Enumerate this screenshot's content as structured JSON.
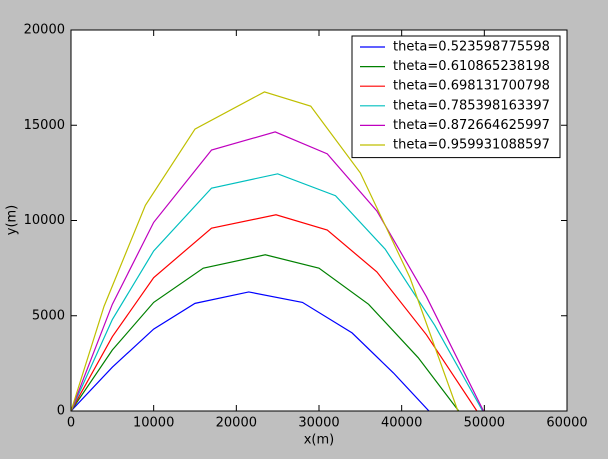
{
  "chart_data": {
    "type": "line",
    "x_label": "x(m)",
    "y_label": "y(m)",
    "xlim": [
      0,
      60000
    ],
    "ylim": [
      0,
      20000
    ],
    "xticks": [
      0,
      10000,
      20000,
      30000,
      40000,
      50000,
      60000
    ],
    "yticks": [
      0,
      5000,
      10000,
      15000,
      20000
    ],
    "legend": "upper right",
    "series": [
      {
        "name": "theta=0.523598775598",
        "color": "#0000ff",
        "x": [
          0,
          5000,
          10000,
          15000,
          21500,
          28000,
          34000,
          39000,
          43300
        ],
        "values": [
          0,
          2300,
          4300,
          5650,
          6250,
          5700,
          4100,
          2000,
          0
        ]
      },
      {
        "name": "theta=0.610865238198",
        "color": "#008000",
        "x": [
          0,
          5000,
          10000,
          16000,
          23500,
          30000,
          36000,
          42000,
          46900
        ],
        "values": [
          0,
          3200,
          5700,
          7500,
          8200,
          7500,
          5600,
          2800,
          0
        ]
      },
      {
        "name": "theta=0.698131700798",
        "color": "#ff0000",
        "x": [
          0,
          5000,
          10000,
          17000,
          24800,
          31000,
          37000,
          43000,
          49100
        ],
        "values": [
          0,
          3900,
          7000,
          9600,
          10300,
          9500,
          7300,
          4000,
          0
        ]
      },
      {
        "name": "theta=0.785398163397",
        "color": "#00bfbf",
        "x": [
          0,
          5000,
          10000,
          17000,
          25000,
          32000,
          38000,
          44000,
          49800
        ],
        "values": [
          0,
          4800,
          8400,
          11700,
          12450,
          11300,
          8500,
          4500,
          0
        ]
      },
      {
        "name": "theta=0.872664625997",
        "color": "#bf00bf",
        "x": [
          0,
          5000,
          10000,
          17000,
          24700,
          31000,
          37000,
          43000,
          49900
        ],
        "values": [
          0,
          5600,
          9900,
          13700,
          14650,
          13500,
          10500,
          6000,
          0
        ]
      },
      {
        "name": "theta=0.959931088597",
        "color": "#bfbf00",
        "x": [
          0,
          4000,
          9000,
          15000,
          23400,
          29000,
          35000,
          41000,
          46800
        ],
        "values": [
          0,
          5500,
          10800,
          14800,
          16750,
          16000,
          12500,
          7000,
          0
        ]
      }
    ]
  }
}
